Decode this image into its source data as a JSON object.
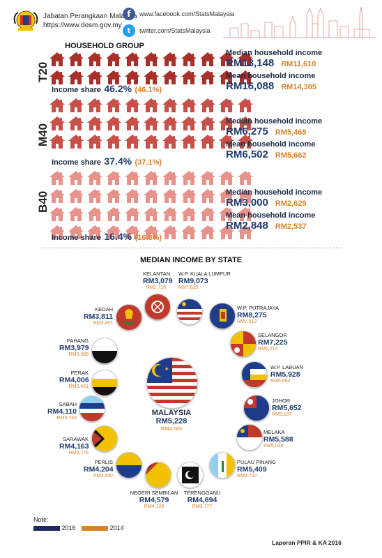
{
  "header": {
    "agency_name": "Jabatan Perangkaan Malaysia",
    "agency_url": "https://www.dosm.gov.my",
    "facebook": "www.facebook.com/StatsMalaysia",
    "twitter": "twitter.com/StatsMalaysia"
  },
  "household": {
    "title": "HOUSEHOLD GROUP",
    "groups": [
      {
        "name": "T20",
        "color": "#a8302a",
        "median_label": "Median household income",
        "median_2016": "RM13,148",
        "median_2014": "RM11,610",
        "mean_label": "Mean household income",
        "mean_2016": "RM16,088",
        "mean_2014": "RM14,305",
        "share_label": "Income share",
        "share_2016": "46.2%",
        "share_2014": "(46.1%)"
      },
      {
        "name": "M40",
        "color": "#c8504a",
        "median_label": "Median household income",
        "median_2016": "RM6,275",
        "median_2014": "RM5,465",
        "mean_label": "Mean household income",
        "mean_2016": "RM6,502",
        "mean_2014": "RM5,662",
        "share_label": "Income share",
        "share_2016": "37.4%",
        "share_2014": "(37.1%)"
      },
      {
        "name": "B40",
        "color": "#e8928c",
        "median_label": "Median household income",
        "median_2016": "RM3,000",
        "median_2014": "RM2,629",
        "mean_label": "Mean household income",
        "mean_2016": "RM2,848",
        "mean_2014": "RM2,537",
        "share_label": "Income share",
        "share_2016": "16.4%",
        "share_2014": "(16.8%)"
      }
    ]
  },
  "states": {
    "title": "MEDIAN INCOME BY STATE",
    "malaysia": {
      "name": "MALAYSIA",
      "v2016": "RM5,228",
      "v2014": "RM4,585"
    },
    "list": [
      {
        "name": "KELANTAN",
        "v2016": "RM3,079",
        "v2014": "RM2,716"
      },
      {
        "name": "W.P. KUALA LUMPUR",
        "v2016": "RM9,073",
        "v2014": "RM7,620"
      },
      {
        "name": "KEDAH",
        "v2016": "RM3,811",
        "v2014": "RM3,451"
      },
      {
        "name": "W.P. PUTRAJAYA",
        "v2016": "RM8,275",
        "v2014": "RM7,512"
      },
      {
        "name": "SELANGOR",
        "v2016": "RM7,225",
        "v2014": "RM6,214"
      },
      {
        "name": "PAHANG",
        "v2016": "RM3,979",
        "v2014": "RM3,389"
      },
      {
        "name": "W.P. LABUAN",
        "v2016": "RM5,928",
        "v2014": "RM5,684"
      },
      {
        "name": "PERAK",
        "v2016": "RM4,006",
        "v2014": "RM3,451"
      },
      {
        "name": "JOHOR",
        "v2016": "RM5,652",
        "v2014": "RM5,197"
      },
      {
        "name": "SABAH",
        "v2016": "RM4,110",
        "v2014": "RM3,745"
      },
      {
        "name": "MELAKA",
        "v2016": "RM5,588",
        "v2014": "RM5,029"
      },
      {
        "name": "SARAWAK",
        "v2016": "RM4,163",
        "v2014": "RM3,778"
      },
      {
        "name": "PULAU PINANG",
        "v2016": "RM5,409",
        "v2014": "RM4,702"
      },
      {
        "name": "PERLIS",
        "v2016": "RM4,204",
        "v2014": "RM3,500"
      },
      {
        "name": "NEGERI SEMBILAN",
        "v2016": "RM4,579",
        "v2014": "RM4,128"
      },
      {
        "name": "TERENGGANU",
        "v2016": "RM4,694",
        "v2014": "RM3,777"
      }
    ]
  },
  "legend": {
    "title": "Note:",
    "y2016": "2016",
    "y2014": "2014",
    "c2016": "#1f2a5c",
    "c2014": "#d9822b"
  },
  "footer": "Laporan PPIR & KA 2016"
}
